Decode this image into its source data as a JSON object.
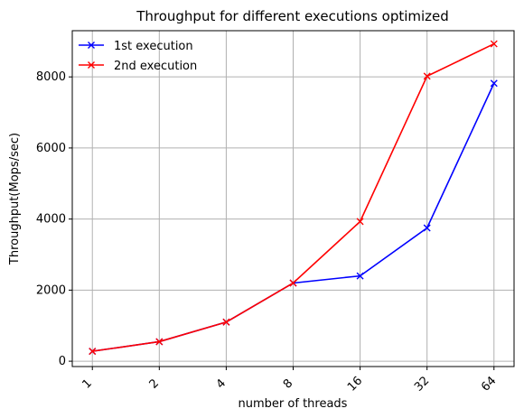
{
  "chart_data": {
    "type": "line",
    "title": "Throughput for different executions optimized",
    "xlabel": "number of threads",
    "ylabel": "Throughput(Mops/sec)",
    "categories": [
      "1",
      "2",
      "4",
      "8",
      "16",
      "32",
      "64"
    ],
    "yticks": [
      "0",
      "2000",
      "4000",
      "6000",
      "8000"
    ],
    "ylim": [
      -150,
      9300
    ],
    "grid": true,
    "legend_position": "top-left",
    "series": [
      {
        "name": "1st execution",
        "color": "#0000ff",
        "marker": "x",
        "values": [
          280,
          550,
          1100,
          2200,
          2400,
          3750,
          7820
        ]
      },
      {
        "name": "2nd execution",
        "color": "#ff0000",
        "marker": "x",
        "values": [
          280,
          550,
          1100,
          2200,
          3930,
          8020,
          8930
        ]
      }
    ]
  }
}
